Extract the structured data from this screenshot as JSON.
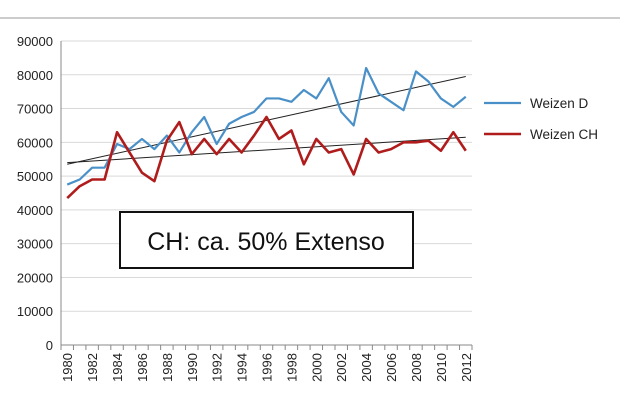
{
  "chart_data": {
    "type": "line",
    "title": "",
    "xlabel": "",
    "ylabel": "",
    "ylim": [
      0,
      90000
    ],
    "y_ticks": [
      0,
      10000,
      20000,
      30000,
      40000,
      50000,
      60000,
      70000,
      80000,
      90000
    ],
    "y_tick_labels": [
      "0",
      "10000",
      "20000",
      "30000",
      "40000",
      "50000",
      "60000",
      "70000",
      "80000",
      "90000"
    ],
    "x": [
      1980,
      1981,
      1982,
      1983,
      1984,
      1985,
      1986,
      1987,
      1988,
      1989,
      1990,
      1991,
      1992,
      1993,
      1994,
      1995,
      1996,
      1997,
      1998,
      1999,
      2000,
      2001,
      2002,
      2003,
      2004,
      2005,
      2006,
      2007,
      2008,
      2009,
      2010,
      2011,
      2012
    ],
    "x_tick_labels": [
      "1980",
      "1982",
      "1984",
      "1986",
      "1988",
      "1990",
      "1992",
      "1994",
      "1996",
      "1998",
      "2000",
      "2002",
      "2004",
      "2006",
      "2008",
      "2010",
      "2012"
    ],
    "grid": "horizontal",
    "legend_position": "right",
    "series": [
      {
        "name": "Weizen D",
        "color": "#4a90c8",
        "values": [
          47500,
          49000,
          52500,
          52500,
          59500,
          58000,
          61000,
          58000,
          62000,
          57000,
          63000,
          67500,
          59500,
          65500,
          67500,
          69000,
          73000,
          73000,
          72000,
          75500,
          73000,
          79000,
          69000,
          65000,
          82000,
          74500,
          72000,
          69500,
          81000,
          78000,
          73000,
          70500,
          73500
        ]
      },
      {
        "name": "Weizen CH",
        "color": "#b01c1c",
        "values": [
          43500,
          47000,
          49000,
          49000,
          63000,
          57000,
          51000,
          48500,
          60500,
          66000,
          56500,
          61000,
          56500,
          61000,
          57000,
          62000,
          67500,
          61000,
          63500,
          53500,
          61000,
          57000,
          58000,
          50500,
          61000,
          57000,
          58000,
          60000,
          60000,
          60500,
          57500,
          63000,
          57500
        ]
      }
    ],
    "trendlines": [
      {
        "series": "Weizen D",
        "start": [
          1980,
          53500
        ],
        "end": [
          2012,
          79500
        ],
        "color": "#222222"
      },
      {
        "series": "Weizen CH",
        "start": [
          1980,
          54000
        ],
        "end": [
          2012,
          61500
        ],
        "color": "#222222"
      }
    ],
    "annotations": [
      {
        "text": "CH: ca. 50% Extenso"
      }
    ]
  }
}
